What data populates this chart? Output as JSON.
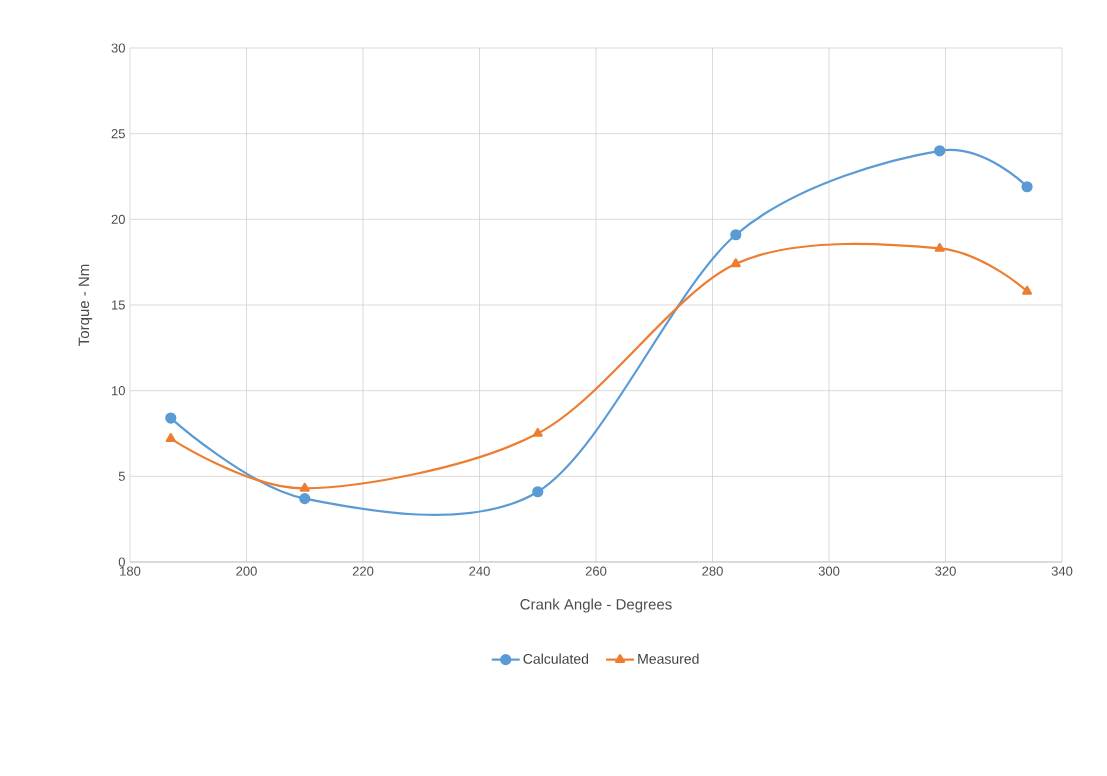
{
  "chart_data": {
    "type": "line",
    "xlabel": "Crank Angle - Degrees",
    "ylabel": "Torque - Nm",
    "series": [
      {
        "name": "Calculated",
        "color": "#5b9bd5",
        "marker": "circle",
        "x": [
          187,
          210,
          250,
          284,
          319,
          334
        ],
        "values": [
          8.4,
          3.7,
          4.1,
          19.1,
          24.0,
          21.9
        ]
      },
      {
        "name": "Measured",
        "color": "#ed7d31",
        "marker": "triangle",
        "x": [
          187,
          210,
          250,
          284,
          319,
          334
        ],
        "values": [
          7.2,
          4.3,
          7.5,
          17.4,
          18.3,
          15.8
        ]
      }
    ],
    "xlim": [
      180,
      340
    ],
    "xticks": [
      180,
      200,
      220,
      240,
      260,
      280,
      300,
      320,
      340
    ],
    "ylim": [
      0,
      30
    ],
    "yticks": [
      0,
      5,
      10,
      15,
      20,
      25,
      30
    ],
    "grid": true,
    "legend": "bottom",
    "line_style": "solid"
  }
}
